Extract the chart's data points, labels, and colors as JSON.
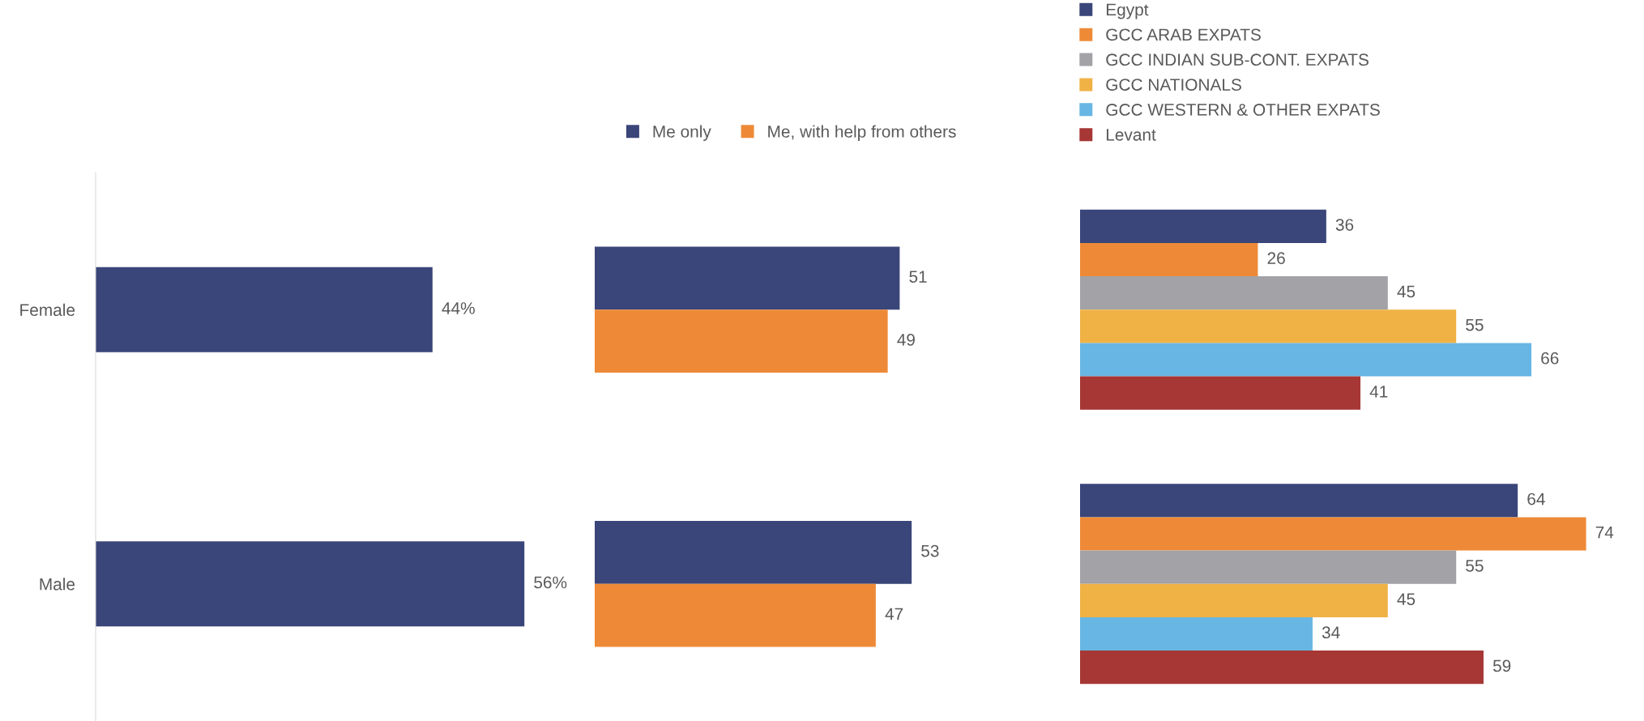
{
  "chart_data": [
    {
      "type": "bar",
      "orientation": "horizontal",
      "categories": [
        "Female",
        "Male"
      ],
      "color": "#3a4579",
      "values": [
        44,
        56
      ],
      "value_labels": [
        "44%",
        "56%"
      ]
    },
    {
      "type": "bar",
      "orientation": "horizontal",
      "categories": [
        null,
        null
      ],
      "tick_labels": false,
      "data_labels": true,
      "legend": "top",
      "series": [
        {
          "name": "Me only",
          "color": "#3a4579",
          "values": [
            51,
            53
          ]
        },
        {
          "name": "Me, with help from others",
          "color": "#ee8a37",
          "values": [
            49,
            47
          ]
        }
      ]
    },
    {
      "type": "bar",
      "orientation": "horizontal",
      "categories": [
        null,
        null
      ],
      "tick_labels": false,
      "data_labels": true,
      "legend": "top left",
      "series": [
        {
          "name": "Egypt",
          "color": "#3a4579",
          "values": [
            36,
            64
          ]
        },
        {
          "name": "GCC ARAB EXPATS",
          "color": "#ee8a37",
          "values": [
            26,
            74
          ]
        },
        {
          "name": "GCC INDIAN SUB-CONT. EXPATS",
          "color": "#a2a2a7",
          "values": [
            45,
            55
          ]
        },
        {
          "name": "GCC NATIONALS",
          "color": "#f0b245",
          "values": [
            55,
            45
          ]
        },
        {
          "name": "GCC WESTERN & OTHER EXPATS",
          "color": "#67b6e3",
          "values": [
            66,
            34
          ]
        },
        {
          "name": "Levant",
          "color": "#a63735",
          "values": [
            41,
            59
          ]
        }
      ]
    }
  ]
}
